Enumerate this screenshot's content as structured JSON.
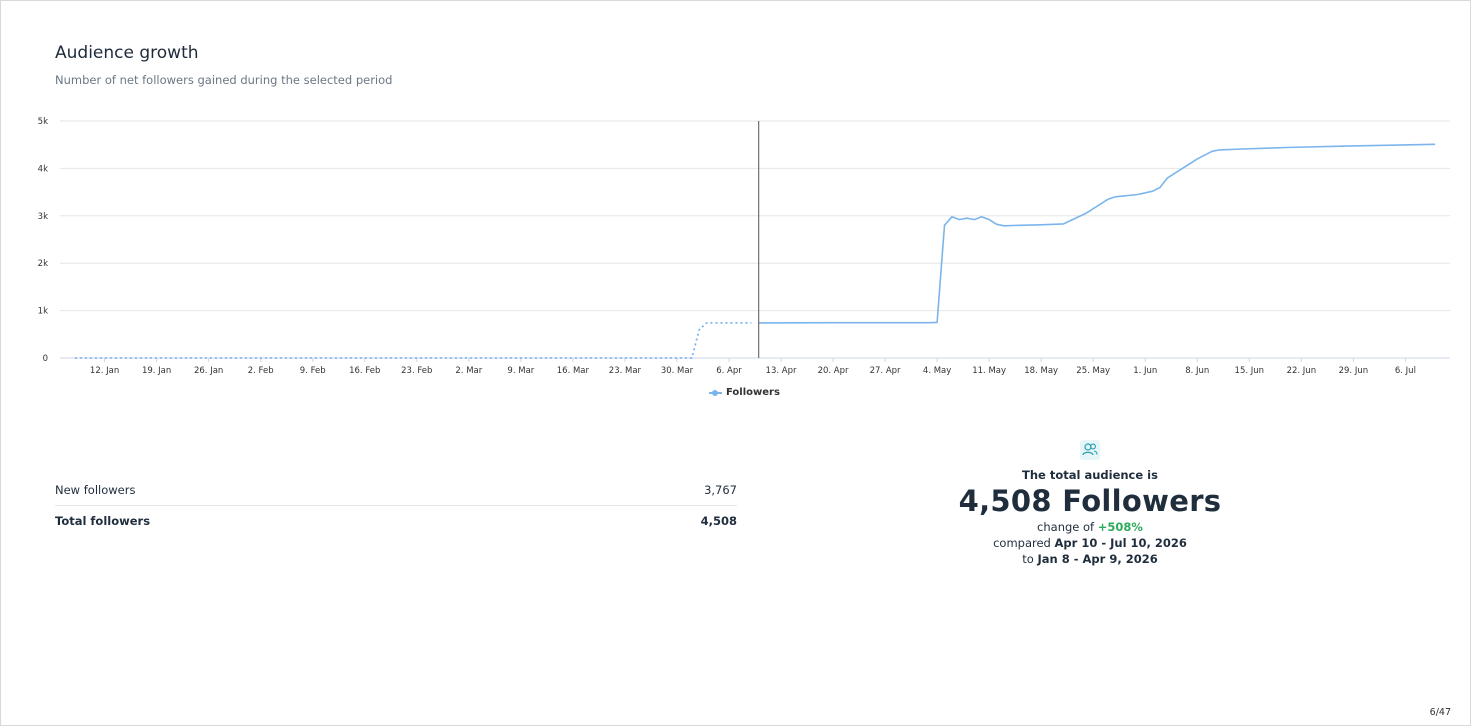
{
  "header": {
    "title": "Audience growth",
    "subtitle": "Number of net followers gained during the selected period"
  },
  "chart_data": {
    "type": "line",
    "title": "",
    "xlabel": "",
    "ylabel": "",
    "ylim": [
      0,
      5000
    ],
    "yticks": [
      "0",
      "1k",
      "2k",
      "3k",
      "4k",
      "5k"
    ],
    "ytick_values": [
      0,
      1000,
      2000,
      3000,
      4000,
      5000
    ],
    "xticks": [
      "12. Jan",
      "19. Jan",
      "26. Jan",
      "2. Feb",
      "9. Feb",
      "16. Feb",
      "23. Feb",
      "2. Mar",
      "9. Mar",
      "16. Mar",
      "23. Mar",
      "30. Mar",
      "6. Apr",
      "13. Apr",
      "20. Apr",
      "27. Apr",
      "4. May",
      "11. May",
      "18. May",
      "25. May",
      "1. Jun",
      "8. Jun",
      "15. Jun",
      "22. Jun",
      "29. Jun",
      "6. Jul"
    ],
    "legend_position": "bottom-center",
    "grid": true,
    "series": [
      {
        "name": "Followers",
        "color": "#7cb5ec",
        "style": "dotted",
        "period": "Jan 8 - Apr 9, 2026",
        "x": [
          "2026-01-08",
          "2026-04-01",
          "2026-04-02",
          "2026-04-03",
          "2026-04-09"
        ],
        "y": [
          0,
          0,
          600,
          740,
          741
        ]
      },
      {
        "name": "Followers",
        "color": "#7cb5ec",
        "style": "solid",
        "period": "Apr 10 - Jul 10, 2026",
        "x": [
          "2026-04-10",
          "2026-04-20",
          "2026-05-03",
          "2026-05-04",
          "2026-05-05",
          "2026-05-06",
          "2026-05-07",
          "2026-05-08",
          "2026-05-09",
          "2026-05-10",
          "2026-05-11",
          "2026-05-12",
          "2026-05-13",
          "2026-05-15",
          "2026-05-18",
          "2026-05-21",
          "2026-05-24",
          "2026-05-27",
          "2026-05-28",
          "2026-05-31",
          "2026-06-02",
          "2026-06-03",
          "2026-06-04",
          "2026-06-06",
          "2026-06-08",
          "2026-06-10",
          "2026-06-11",
          "2026-06-14",
          "2026-06-20",
          "2026-06-28",
          "2026-07-10"
        ],
        "y": [
          741,
          745,
          745,
          750,
          2800,
          2980,
          2920,
          2950,
          2920,
          2980,
          2920,
          2820,
          2790,
          2800,
          2810,
          2830,
          3050,
          3350,
          3400,
          3450,
          3520,
          3600,
          3800,
          4000,
          4200,
          4360,
          4390,
          4410,
          4440,
          4470,
          4508
        ]
      }
    ],
    "crosshair_date": "2026-04-10"
  },
  "legend": {
    "label": "Followers"
  },
  "stats": {
    "rows": [
      {
        "label": "New followers",
        "value": "3,767"
      },
      {
        "label": "Total followers",
        "value": "4,508"
      }
    ]
  },
  "summary": {
    "icon": "users-icon",
    "lead": "The total audience is",
    "total": "4,508 Followers",
    "change_prefix": "change of",
    "change_value": "+508%",
    "compared_prefix": "compared",
    "compared_period": "Apr 10 - Jul 10, 2026",
    "to_prefix": "to",
    "to_period": "Jan 8 - Apr 9, 2026"
  },
  "footer": {
    "page": "6/47"
  },
  "colors": {
    "line": "#7cb5ec",
    "positive": "#2eaa5c",
    "grid": "#e6e6e6",
    "text": "#1e2a3b"
  }
}
